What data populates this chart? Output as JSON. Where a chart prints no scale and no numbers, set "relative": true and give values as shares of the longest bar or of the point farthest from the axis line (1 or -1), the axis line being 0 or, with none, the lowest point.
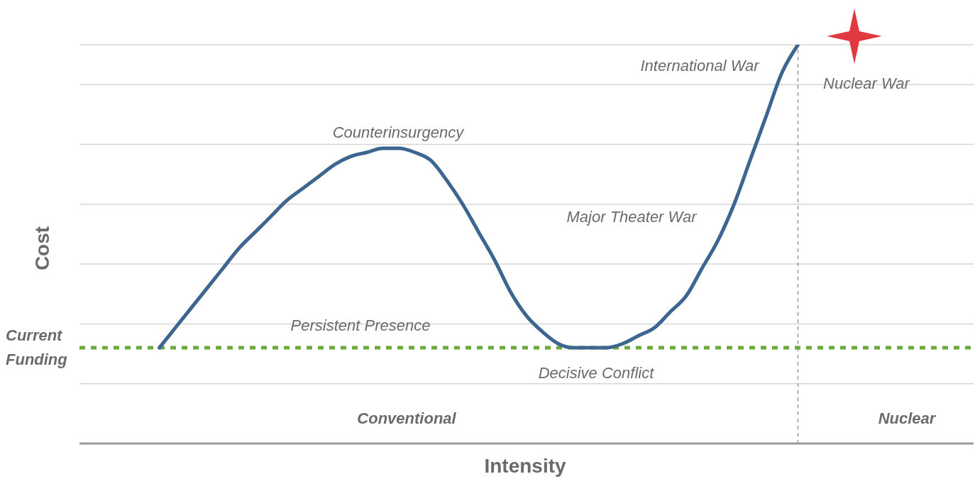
{
  "chart_data": {
    "type": "line",
    "relative": true,
    "xlabel": "Intensity",
    "ylabel": "Cost",
    "categories": [
      null,
      null,
      null,
      null,
      null,
      null,
      null,
      null,
      null,
      null,
      null,
      null,
      null,
      null,
      null,
      null,
      null,
      null,
      null,
      null,
      null,
      null,
      null,
      null,
      null,
      null,
      null,
      null,
      null,
      null,
      null,
      null,
      null,
      null,
      null,
      null,
      null,
      null,
      null,
      null,
      null,
      null,
      null,
      null,
      null,
      null,
      null,
      null,
      null,
      null,
      null,
      null,
      null,
      null,
      null,
      null,
      null
    ],
    "series": [
      {
        "color": "#3c6590",
        "values": [
          null,
          null,
          null,
          null,
          null,
          0.24,
          0.29,
          0.34,
          0.39,
          0.44,
          0.49,
          0.53,
          0.57,
          0.61,
          0.64,
          0.67,
          0.7,
          0.72,
          0.73,
          0.74,
          0.74,
          0.73,
          0.71,
          0.66,
          0.6,
          0.53,
          0.46,
          0.38,
          0.32,
          0.28,
          0.25,
          0.24,
          0.24,
          0.24,
          0.25,
          0.27,
          0.29,
          0.33,
          0.37,
          0.44,
          0.51,
          0.6,
          0.71,
          0.82,
          0.93,
          1,
          null,
          null,
          null,
          null,
          null,
          null,
          null,
          null,
          null,
          null,
          null
        ]
      }
    ],
    "ref_lines": [
      {
        "axis": "y",
        "value": 0.24,
        "label": "Current Funding",
        "color": "#6aaa3c",
        "line_style": "dashed"
      }
    ],
    "annotations": [
      "International War",
      "Nuclear War",
      "Counterinsurgency",
      "Major Theater War",
      "Persistent Presence",
      "Decisive Conflict",
      "Conventional",
      "Nuclear"
    ],
    "grid": true,
    "marker": "none",
    "line_style": "solid"
  }
}
